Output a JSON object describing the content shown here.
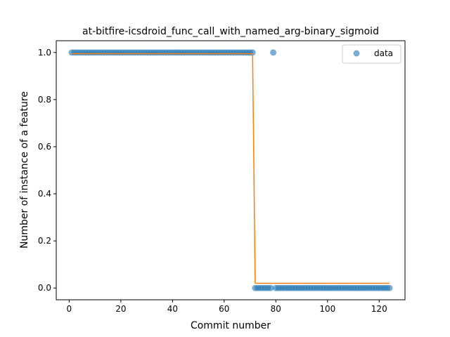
{
  "chart_data": {
    "type": "scatter",
    "title": "at-bitfire-icsdroid_func_call_with_named_arg-binary_sigmoid",
    "xlabel": "Commit number",
    "ylabel": "Number of instance of a feature",
    "xlim": [
      -5,
      130
    ],
    "ylim": [
      -0.05,
      1.05
    ],
    "xticks": [
      0,
      20,
      40,
      60,
      80,
      100,
      120
    ],
    "yticks": [
      0.0,
      0.2,
      0.4,
      0.6,
      0.8,
      1.0
    ],
    "xtick_labels": [
      "0",
      "20",
      "40",
      "60",
      "80",
      "100",
      "120"
    ],
    "ytick_labels": [
      "0.0",
      "0.2",
      "0.4",
      "0.6",
      "0.8",
      "1.0"
    ],
    "legend": {
      "location": "top-right",
      "entries": [
        {
          "label": "data"
        }
      ]
    },
    "grid": false,
    "colors": {
      "points": "#1f77b4",
      "fit": "#ff7f0e"
    },
    "series": [
      {
        "name": "data",
        "kind": "scatter",
        "segments": [
          {
            "x_from": 1,
            "x_to": 71,
            "y": 1
          },
          {
            "x_from": 79,
            "x_to": 79,
            "y": 1
          },
          {
            "x_from": 72,
            "x_to": 78,
            "y": 0
          },
          {
            "x_from": 80,
            "x_to": 124,
            "y": 0
          }
        ]
      },
      {
        "kind": "line",
        "points": [
          [
            1,
            0.995
          ],
          [
            71,
            0.995
          ],
          [
            72,
            0.02
          ],
          [
            124,
            0.02
          ]
        ]
      }
    ]
  }
}
